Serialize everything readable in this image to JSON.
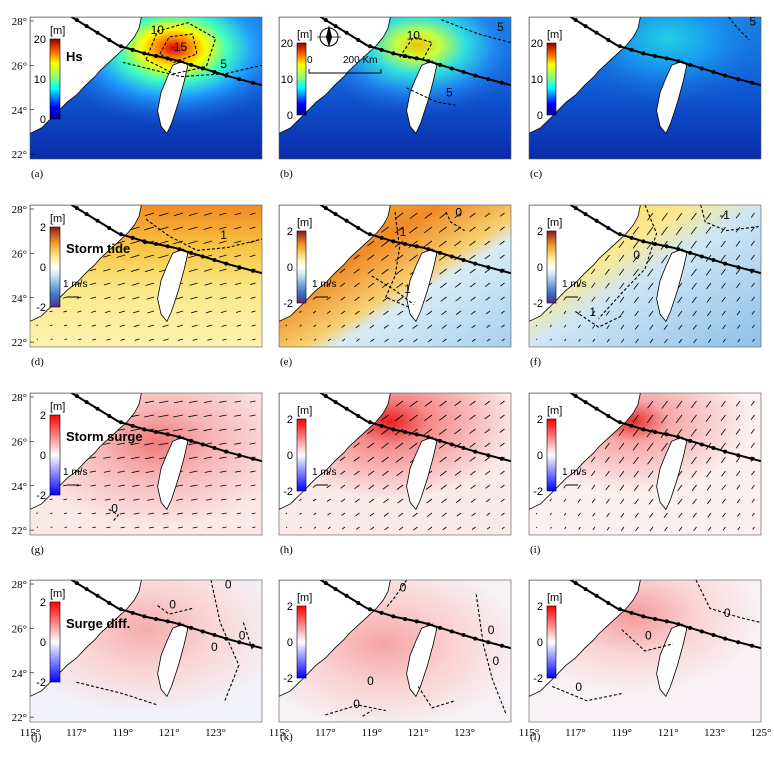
{
  "figure": {
    "y_ticks": [
      "28°",
      "26°",
      "24°",
      "22°"
    ],
    "x_ticks": [
      "115°",
      "117°",
      "119°",
      "121°",
      "123°",
      "125°"
    ],
    "x_ticks_last_col": [
      "115°",
      "117°",
      "119°",
      "121°",
      "123°",
      "125°"
    ],
    "unit": "[m]",
    "compass_scale": {
      "zero": "0",
      "distance": "200 Km"
    },
    "vector_ref": "1 m/s"
  },
  "rows": [
    {
      "title": "Hs",
      "colorbar": {
        "type": "jet",
        "ticks": [
          "20",
          "10",
          "0"
        ]
      }
    },
    {
      "title": "Storm tide",
      "colorbar": {
        "type": "tide",
        "ticks": [
          "2",
          "0",
          "-2"
        ]
      }
    },
    {
      "title": "Storm surge",
      "colorbar": {
        "type": "bwr",
        "ticks": [
          "2",
          "0",
          "-2"
        ]
      }
    },
    {
      "title": "Surge diff.",
      "colorbar": {
        "type": "bwr",
        "ticks": [
          "2",
          "0",
          "-2"
        ]
      }
    }
  ],
  "panels": [
    {
      "label": "(a)",
      "row": 0,
      "col": 0,
      "field": "hs_a",
      "contours": [
        "10",
        "15",
        "5"
      ]
    },
    {
      "label": "(b)",
      "row": 0,
      "col": 1,
      "field": "hs_b",
      "contours": [
        "10",
        "5",
        "5"
      ]
    },
    {
      "label": "(c)",
      "row": 0,
      "col": 2,
      "field": "hs_c",
      "contours": [
        "5"
      ]
    },
    {
      "label": "(d)",
      "row": 1,
      "col": 0,
      "field": "tide_d",
      "contours": [
        "1"
      ]
    },
    {
      "label": "(e)",
      "row": 1,
      "col": 1,
      "field": "tide_e",
      "contours": [
        "1",
        "0",
        "1"
      ]
    },
    {
      "label": "(f)",
      "row": 1,
      "col": 2,
      "field": "tide_f",
      "contours": [
        "0",
        "-1",
        "1"
      ]
    },
    {
      "label": "(g)",
      "row": 2,
      "col": 0,
      "field": "surge_g",
      "contours": [
        "0"
      ]
    },
    {
      "label": "(h)",
      "row": 2,
      "col": 1,
      "field": "surge_h",
      "contours": []
    },
    {
      "label": "(i)",
      "row": 2,
      "col": 2,
      "field": "surge_i",
      "contours": []
    },
    {
      "label": "(j)",
      "row": 3,
      "col": 0,
      "field": "diff_j",
      "contours": [
        "0",
        "0",
        "0",
        "0"
      ]
    },
    {
      "label": "(k)",
      "row": 3,
      "col": 1,
      "field": "diff_k",
      "contours": [
        "0",
        "0",
        "0",
        "0",
        "0"
      ]
    },
    {
      "label": "(l)",
      "row": 3,
      "col": 2,
      "field": "diff_l",
      "contours": [
        "0",
        "0",
        "0"
      ]
    }
  ]
}
